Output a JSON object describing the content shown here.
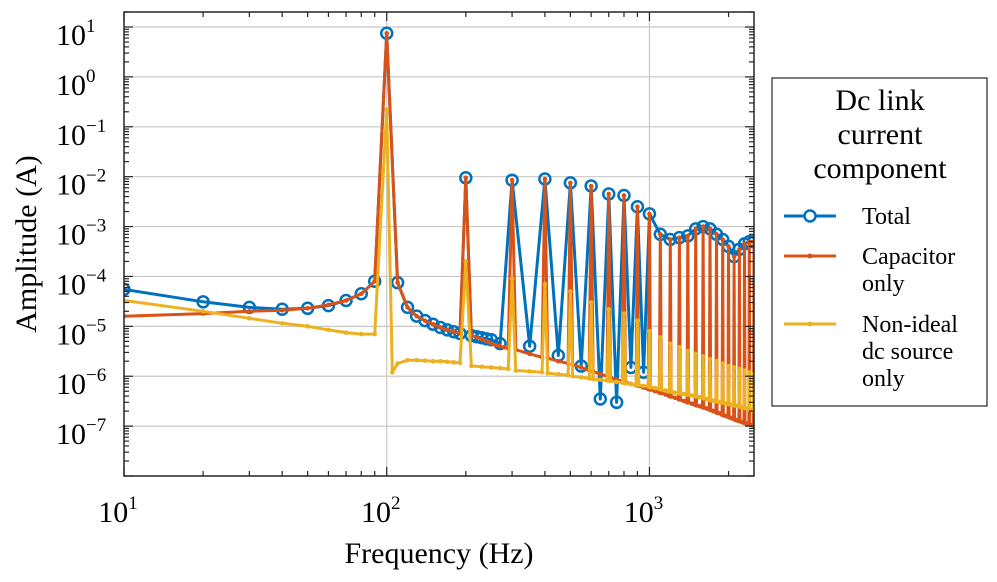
{
  "chart_data": {
    "type": "line",
    "title": "",
    "xlabel": "Frequency (Hz)",
    "ylabel": "Amplitude (A)",
    "x_scale": "log",
    "y_scale": "log",
    "xlim": [
      10,
      2500
    ],
    "ylim": [
      1e-08,
      20
    ],
    "grid": true,
    "x_ticks": [
      {
        "value": 10,
        "base": "10",
        "exp": "1"
      },
      {
        "value": 100,
        "base": "10",
        "exp": "2"
      },
      {
        "value": 1000,
        "base": "10",
        "exp": "3"
      }
    ],
    "y_ticks": [
      {
        "value": 10,
        "base": "10",
        "exp": "1"
      },
      {
        "value": 1,
        "base": "10",
        "exp": "0"
      },
      {
        "value": 0.1,
        "base": "10",
        "exp": "−1"
      },
      {
        "value": 0.01,
        "base": "10",
        "exp": "−2"
      },
      {
        "value": 0.001,
        "base": "10",
        "exp": "−3"
      },
      {
        "value": 0.0001,
        "base": "10",
        "exp": "−4"
      },
      {
        "value": 1e-05,
        "base": "10",
        "exp": "−5"
      },
      {
        "value": 1e-06,
        "base": "10",
        "exp": "−6"
      },
      {
        "value": 1e-07,
        "base": "10",
        "exp": "−7"
      }
    ],
    "legend": {
      "placement": "outside-right",
      "title_lines": [
        "Dc link",
        "current",
        "component"
      ],
      "entries": [
        {
          "lines": [
            "Total"
          ],
          "color": "#0072BD",
          "marker": "open-circle"
        },
        {
          "lines": [
            "Capacitor",
            "only"
          ],
          "color": "#D95319",
          "marker": "dot"
        },
        {
          "lines": [
            "Non-ideal",
            "dc source",
            "only"
          ],
          "color": "#EDB120",
          "marker": "dot"
        }
      ]
    },
    "series": [
      {
        "name": "Total",
        "color": "#0072BD",
        "marker": "open-circle",
        "x": [
          10,
          20,
          30,
          40,
          50,
          60,
          70,
          80,
          90,
          100,
          110,
          120,
          130,
          140,
          150,
          160,
          170,
          180,
          190,
          200,
          210,
          220,
          230,
          240,
          250,
          270,
          300,
          350,
          400,
          450,
          500,
          550,
          600,
          650,
          700,
          750,
          800,
          850,
          900,
          950,
          1000,
          1100,
          1200,
          1300,
          1400,
          1500,
          1600,
          1700,
          1800,
          1900,
          2000,
          2100,
          2200,
          2300,
          2400,
          2500
        ],
        "y": [
          5.5e-05,
          3.1e-05,
          2.4e-05,
          2.2e-05,
          2.3e-05,
          2.6e-05,
          3.3e-05,
          4.5e-05,
          8e-05,
          7.5,
          7.5e-05,
          2.4e-05,
          1.6e-05,
          1.3e-05,
          1.1e-05,
          9.5e-06,
          8.5e-06,
          7.8e-06,
          7.2e-06,
          0.0095,
          6.5e-06,
          6.2e-06,
          5.9e-06,
          5.6e-06,
          5.4e-06,
          4.5e-06,
          0.0085,
          4e-06,
          0.009,
          2.6e-06,
          0.0075,
          1.6e-06,
          0.0065,
          3.5e-07,
          0.0045,
          3e-07,
          0.0042,
          1.5e-06,
          0.0025,
          1.2e-06,
          0.0018,
          0.0007,
          0.00055,
          0.0006,
          0.00065,
          0.0009,
          0.001,
          0.0009,
          0.0007,
          0.00055,
          0.0004,
          0.00025,
          0.00035,
          0.00045,
          0.0005,
          0.0005
        ]
      },
      {
        "name": "Capacitor only",
        "color": "#D95319",
        "marker": "dot",
        "x": [
          10,
          20,
          30,
          40,
          50,
          60,
          70,
          80,
          90,
          100,
          110,
          120,
          130,
          140,
          150,
          160,
          170,
          180,
          190,
          200,
          210,
          220,
          230,
          240,
          250,
          260,
          270,
          280,
          290,
          300,
          310,
          350,
          390,
          400,
          410,
          450,
          490,
          500,
          510,
          550,
          590,
          600,
          610,
          650,
          690,
          700,
          710,
          750,
          790,
          800,
          810,
          850,
          890,
          900,
          910,
          950,
          990,
          1000,
          1010,
          1050,
          1090,
          1100,
          1110,
          1150,
          1190,
          1200,
          1210,
          1250,
          1290,
          1300,
          1310,
          1350,
          1390,
          1400,
          1410,
          1450,
          1490,
          1500,
          1510,
          1550,
          1590,
          1600,
          1610,
          1650,
          1690,
          1700,
          1710,
          1750,
          1790,
          1800,
          1810,
          1850,
          1890,
          1900,
          1910,
          1950,
          1990,
          2000,
          2010,
          2050,
          2090,
          2100,
          2110,
          2150,
          2190,
          2200,
          2210,
          2250,
          2290,
          2300,
          2310,
          2350,
          2390,
          2400,
          2410,
          2450,
          2490,
          2500
        ],
        "y": [
          1.6e-05,
          1.8e-05,
          2e-05,
          2.1e-05,
          2.3e-05,
          2.7e-05,
          3.3e-05,
          4.5e-05,
          8e-05,
          7.5,
          7.5e-05,
          2.4e-05,
          1.6e-05,
          1.3e-05,
          1.1e-05,
          9.5e-06,
          8.5e-06,
          7.8e-06,
          7.2e-06,
          0.0095,
          6.5e-06,
          6e-06,
          5.5e-06,
          5e-06,
          4.5e-06,
          4.2e-06,
          4e-06,
          3.8e-06,
          3.6e-06,
          0.0085,
          3.4e-06,
          2.8e-06,
          2.4e-06,
          0.009,
          2.3e-06,
          2e-06,
          1.8e-06,
          0.0075,
          1.7e-06,
          1.5e-06,
          1.3e-06,
          0.0065,
          1.25e-06,
          1.1e-06,
          1e-06,
          0.0045,
          9.5e-07,
          8.5e-07,
          8e-07,
          0.0042,
          7.7e-07,
          7e-07,
          6.6e-07,
          0.0025,
          6.4e-07,
          5.9e-07,
          5.5e-07,
          0.0018,
          5.4e-07,
          5e-07,
          4.7e-07,
          0.0007,
          4.6e-07,
          4.3e-07,
          4e-07,
          0.00055,
          3.9e-07,
          3.7e-07,
          3.5e-07,
          0.0006,
          3.4e-07,
          3.2e-07,
          3e-07,
          0.00065,
          3e-07,
          2.8e-07,
          2.7e-07,
          0.0009,
          2.6e-07,
          2.5e-07,
          2.4e-07,
          0.001,
          2.35e-07,
          2.25e-07,
          2.15e-07,
          0.0009,
          2.1e-07,
          2e-07,
          1.9e-07,
          0.0007,
          1.85e-07,
          1.8e-07,
          1.7e-07,
          0.00055,
          1.65e-07,
          1.6e-07,
          1.55e-07,
          0.0004,
          1.5e-07,
          1.45e-07,
          1.4e-07,
          0.00025,
          1.35e-07,
          1.3e-07,
          1.27e-07,
          0.00035,
          1.25e-07,
          1.2e-07,
          1.17e-07,
          0.00045,
          1.15e-07,
          1.12e-07,
          1.1e-07,
          0.0005,
          1.08e-07,
          1.05e-07,
          1.02e-07,
          0.0005
        ]
      },
      {
        "name": "Non-ideal dc source only",
        "color": "#EDB120",
        "marker": "dot",
        "x": [
          10,
          20,
          30,
          40,
          50,
          60,
          70,
          80,
          90,
          100,
          105,
          110,
          120,
          130,
          140,
          150,
          160,
          170,
          180,
          190,
          200,
          210,
          230,
          250,
          270,
          290,
          300,
          310,
          350,
          390,
          400,
          410,
          450,
          490,
          500,
          510,
          550,
          590,
          600,
          610,
          650,
          690,
          700,
          710,
          750,
          790,
          800,
          810,
          850,
          890,
          900,
          910,
          950,
          990,
          1000,
          1010,
          1050,
          1090,
          1100,
          1110,
          1150,
          1190,
          1200,
          1210,
          1250,
          1290,
          1300,
          1310,
          1350,
          1390,
          1400,
          1410,
          1450,
          1490,
          1500,
          1510,
          1550,
          1590,
          1600,
          1610,
          1650,
          1690,
          1700,
          1710,
          1750,
          1790,
          1800,
          1810,
          1850,
          1890,
          1900,
          1910,
          1950,
          1990,
          2000,
          2010,
          2050,
          2090,
          2100,
          2110,
          2150,
          2190,
          2200,
          2210,
          2250,
          2290,
          2300,
          2310,
          2350,
          2390,
          2400,
          2410,
          2450,
          2490,
          2500
        ],
        "y": [
          3.3e-05,
          2e-05,
          1.45e-05,
          1.15e-05,
          1e-05,
          8.5e-06,
          7.5e-06,
          7e-06,
          7e-06,
          0.22,
          1.2e-06,
          1.8e-06,
          2.1e-06,
          2.1e-06,
          2.05e-06,
          2e-06,
          2e-06,
          1.95e-06,
          1.9e-06,
          1.85e-06,
          0.0002,
          1.6e-06,
          1.55e-06,
          1.5e-06,
          1.45e-06,
          1.4e-06,
          9e-05,
          1.3e-06,
          1.25e-06,
          1.2e-06,
          7e-05,
          1.15e-06,
          1.1e-06,
          1.05e-06,
          5e-05,
          1e-06,
          9.5e-07,
          9e-07,
          3e-05,
          8.8e-07,
          8.5e-07,
          8.2e-07,
          2.2e-05,
          8e-07,
          7.7e-07,
          7.4e-07,
          1.8e-05,
          7.2e-07,
          7e-07,
          6.8e-07,
          1.3e-05,
          6.6e-07,
          6.4e-07,
          6.2e-07,
          8e-06,
          6e-07,
          5.8e-07,
          5.6e-07,
          6e-06,
          5.4e-07,
          5.2e-07,
          5e-07,
          4.5e-06,
          4.9e-07,
          4.7e-07,
          4.6e-07,
          3.8e-06,
          4.5e-07,
          4.4e-07,
          4.3e-07,
          3.2e-06,
          4.2e-07,
          4.1e-07,
          4e-07,
          2.8e-06,
          3.9e-07,
          3.8e-07,
          3.7e-07,
          2.5e-06,
          3.6e-07,
          3.5e-07,
          3.4e-07,
          2.2e-06,
          3.3e-07,
          3.25e-07,
          3.2e-07,
          2e-06,
          3.1e-07,
          3e-07,
          2.95e-07,
          1.8e-06,
          2.9e-07,
          2.85e-07,
          2.8e-07,
          1.6e-06,
          2.75e-07,
          2.7e-07,
          2.65e-07,
          1.5e-06,
          2.6e-07,
          2.55e-07,
          2.5e-07,
          1.4e-06,
          2.45e-07,
          2.4e-07,
          2.35e-07,
          1.3e-06,
          2.3e-07,
          2.25e-07,
          2.2e-07,
          1.2e-06,
          2.15e-07,
          2.1e-07,
          2.05e-07,
          1.1e-06
        ]
      }
    ]
  }
}
